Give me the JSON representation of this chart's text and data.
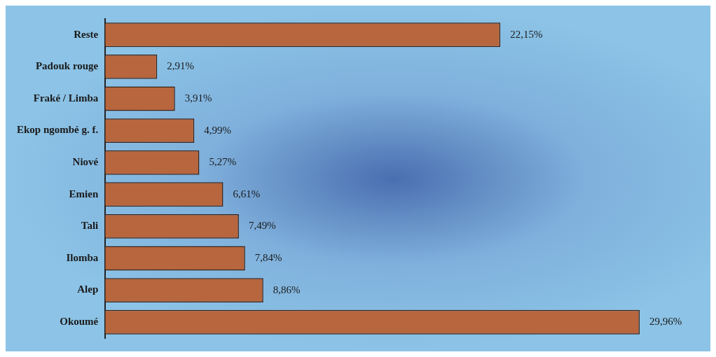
{
  "chart_data": {
    "type": "bar",
    "orientation": "horizontal",
    "categories": [
      "Reste",
      "Padouk rouge",
      "Fraké / Limba",
      "Ekop ngombé g. f.",
      "Niové",
      "Emien",
      "Tali",
      "Ilomba",
      "Alep",
      "Okoumé"
    ],
    "values": [
      22.15,
      2.91,
      3.91,
      4.99,
      5.27,
      6.61,
      7.49,
      7.84,
      8.86,
      29.96
    ],
    "value_labels": [
      "22,15%",
      "2,91%",
      "3,91%",
      "4,99%",
      "5,27%",
      "6,61%",
      "7,49%",
      "7,84%",
      "8,86%",
      "29,96%"
    ],
    "color": "#b8663e",
    "legend": false
  }
}
